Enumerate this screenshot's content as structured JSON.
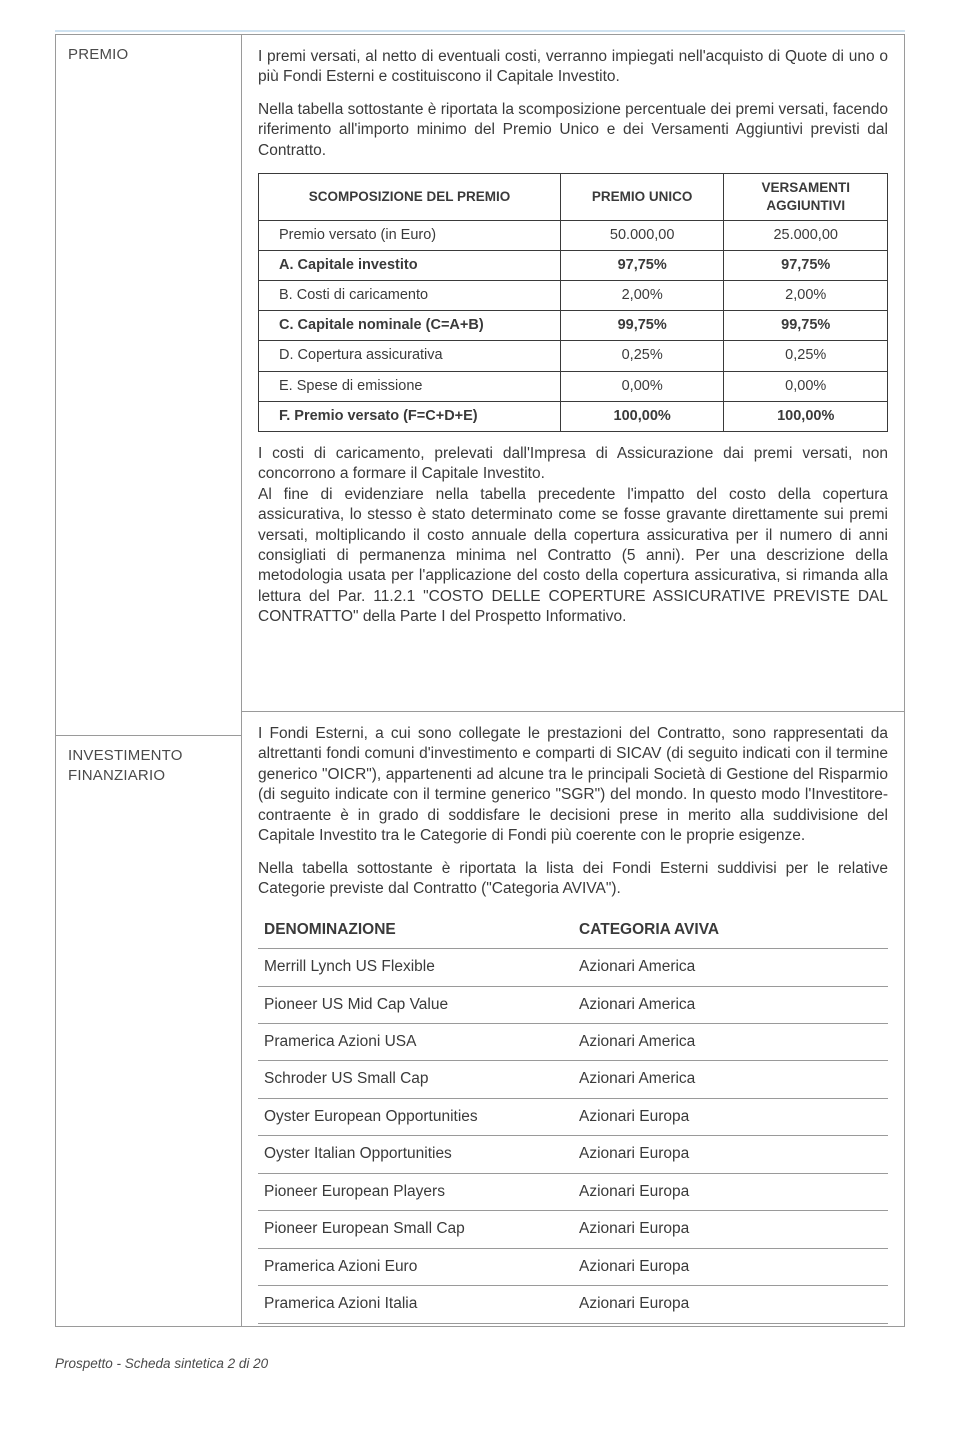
{
  "section1": {
    "label": "PREMIO",
    "p1": "I premi versati, al netto di eventuali costi, verranno impiegati nell'acquisto di Quote di uno o più Fondi Esterni e costituiscono il Capitale Investito.",
    "p2": "Nella tabella sottostante è riportata la scomposizione percentuale dei premi versati, facendo riferimento all'importo minimo del Premio Unico e dei Versamenti Aggiuntivi previsti dal Contratto.",
    "table": {
      "head": [
        "SCOMPOSIZIONE DEL PREMIO",
        "PREMIO UNICO",
        "VERSAMENTI AGGIUNTIVI"
      ],
      "rows": [
        {
          "label": "Premio versato (in Euro)",
          "c1": "50.000,00",
          "c2": "25.000,00",
          "bold": false
        },
        {
          "label": "A. Capitale investito",
          "c1": "97,75%",
          "c2": "97,75%",
          "bold": true
        },
        {
          "label": "B. Costi di caricamento",
          "c1": "2,00%",
          "c2": "2,00%",
          "bold": false
        },
        {
          "label": "C. Capitale nominale (C=A+B)",
          "c1": "99,75%",
          "c2": "99,75%",
          "bold": true
        },
        {
          "label": "D. Copertura assicurativa",
          "c1": "0,25%",
          "c2": "0,25%",
          "bold": false
        },
        {
          "label": "E. Spese di emissione",
          "c1": "0,00%",
          "c2": "0,00%",
          "bold": false
        },
        {
          "label": "F. Premio versato (F=C+D+E)",
          "c1": "100,00%",
          "c2": "100,00%",
          "bold": true
        }
      ]
    },
    "p3": "I costi di caricamento, prelevati dall'Impresa di Assicurazione dai premi versati, non concorrono a formare il Capitale Investito.\nAl fine di evidenziare nella tabella precedente l'impatto del costo della copertura assicurativa, lo stesso è stato determinato come se fosse gravante direttamente sui premi versati, moltiplicando il costo annuale della copertura assicurativa per il numero di anni consigliati di permanenza minima nel Contratto (5 anni). Per una descrizione della metodologia usata per l'applicazione del costo della copertura assicurativa, si rimanda alla lettura del Par. 11.2.1 \"COSTO DELLE COPERTURE ASSICURATIVE PREVISTE DAL CONTRATTO\" della Parte I del Prospetto Informativo."
  },
  "section2": {
    "label": "INVESTIMENTO FINANZIARIO",
    "p1": "I Fondi Esterni, a cui sono collegate le prestazioni del Contratto, sono rappresentati da altrettanti fondi comuni d'investimento e comparti di SICAV (di seguito indicati con il termine generico \"OICR\"), appartenenti ad alcune tra le principali Società di Gestione del Risparmio (di seguito indicate con il termine generico \"SGR\") del mondo. In questo modo l'Investitore-contraente è in grado di soddisfare le decisioni prese in merito alla suddivisione del Capitale Investito tra le Categorie di Fondi più coerente con le proprie esigenze.",
    "p2": "Nella tabella sottostante è riportata la lista dei Fondi Esterni suddivisi per le relative Categorie previste dal Contratto (\"Categoria AVIVA\").",
    "table": {
      "head": [
        "DENOMINAZIONE",
        "CATEGORIA AVIVA"
      ],
      "rows": [
        [
          "Merrill Lynch US Flexible",
          "Azionari America"
        ],
        [
          "Pioneer US Mid Cap Value",
          "Azionari America"
        ],
        [
          "Pramerica Azioni USA",
          "Azionari America"
        ],
        [
          "Schroder US Small Cap",
          "Azionari America"
        ],
        [
          "Oyster European Opportunities",
          "Azionari Europa"
        ],
        [
          "Oyster Italian Opportunities",
          "Azionari Europa"
        ],
        [
          "Pioneer European Players",
          "Azionari Europa"
        ],
        [
          "Pioneer European Small Cap",
          "Azionari Europa"
        ],
        [
          "Pramerica Azioni Euro",
          "Azionari Europa"
        ],
        [
          "Pramerica Azioni Italia",
          "Azionari Europa"
        ]
      ]
    }
  },
  "footer": "Prospetto - Scheda sintetica  2 di 20"
}
